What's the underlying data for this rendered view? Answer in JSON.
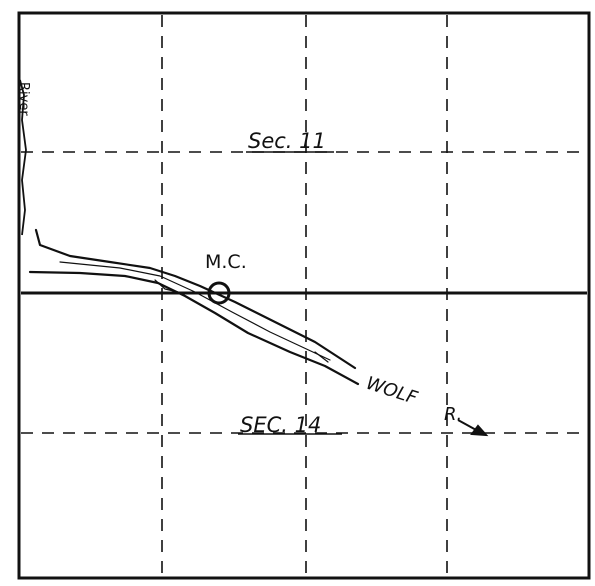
{
  "labels": {
    "section_north": "Sec. 11",
    "section_south": "SEC. 14",
    "marker": "M.C.",
    "river_main": "WOLF",
    "river_arrow": "R.",
    "river_edge": "River"
  },
  "colors": {
    "ink": "#111111",
    "background": "#ffffff"
  }
}
